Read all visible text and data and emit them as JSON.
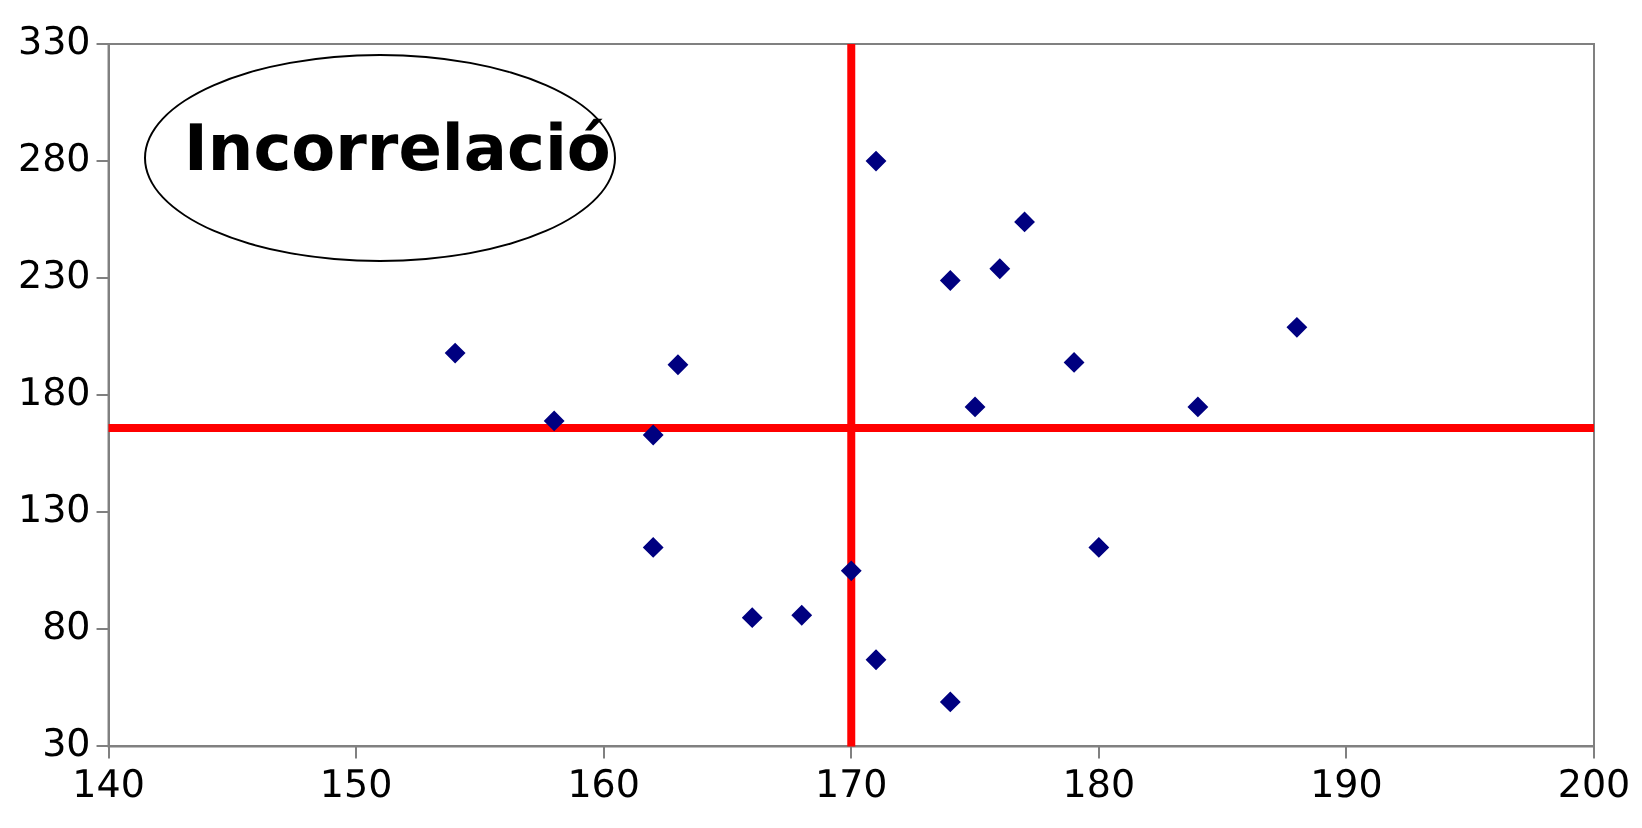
{
  "chart_data": {
    "type": "scatter",
    "annotations": [
      "Incorrelació"
    ],
    "x": [
      154,
      158,
      162,
      163,
      162,
      166,
      168,
      170,
      171,
      171,
      174,
      174,
      175,
      176,
      177,
      179,
      180,
      184,
      188
    ],
    "series": [
      {
        "color": "#000080",
        "values": [
          198,
          169,
          163,
          193,
          115,
          85,
          86,
          105,
          67,
          280,
          229,
          49,
          175,
          234,
          254,
          194,
          115,
          175,
          209
        ]
      }
    ],
    "xlim": [
      140,
      200
    ],
    "xticks": [
      140,
      150,
      160,
      170,
      180,
      190,
      200
    ],
    "ylim": [
      30,
      330
    ],
    "yticks": [
      30,
      80,
      130,
      180,
      230,
      280,
      330
    ],
    "grid": false,
    "legend": false,
    "marker": "diamond",
    "ref_lines": [
      {
        "axis": "x",
        "value": 170,
        "color": "#ff0000"
      },
      {
        "axis": "y",
        "value": 166,
        "color": "#ff0000"
      }
    ]
  }
}
